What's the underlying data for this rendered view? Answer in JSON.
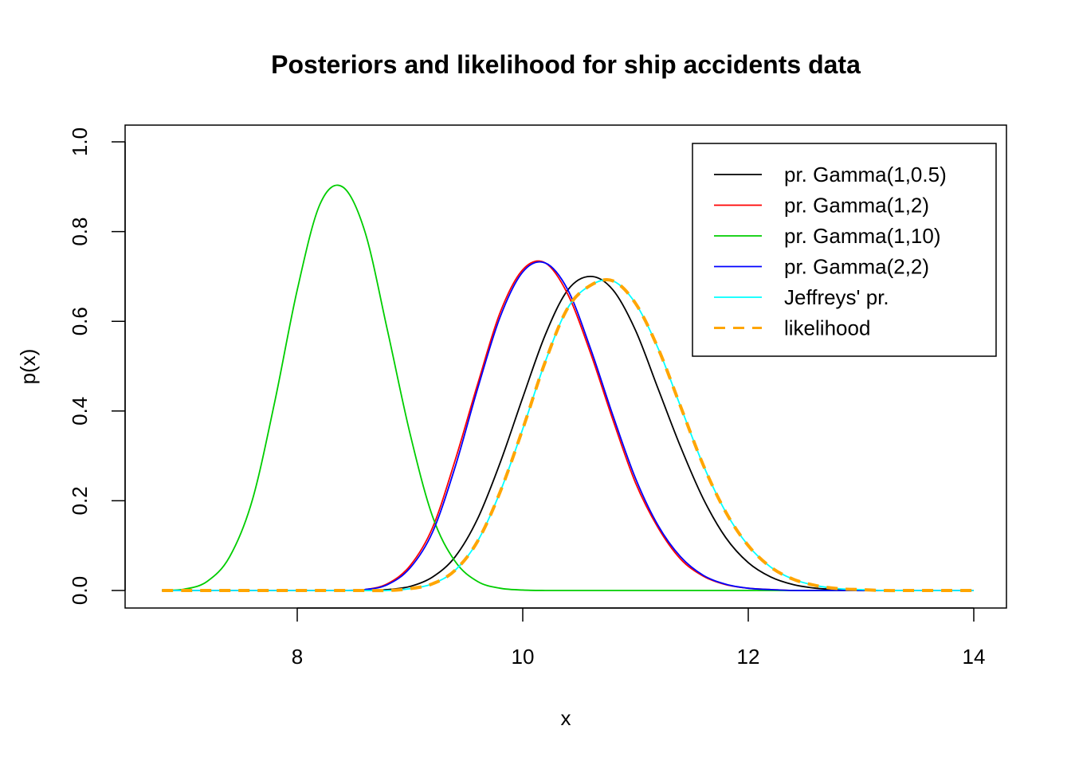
{
  "chart_data": {
    "type": "line",
    "title": "Posteriors and likelihood for ship accidents data",
    "xlabel": "x",
    "ylabel": "p(x)",
    "xlim": [
      6.8,
      14.0
    ],
    "ylim": [
      0.0,
      1.0
    ],
    "x_ticks": [
      8,
      10,
      12,
      14
    ],
    "x_tick_labels": [
      "8",
      "10",
      "12",
      "14"
    ],
    "y_ticks": [
      0.0,
      0.2,
      0.4,
      0.6,
      0.8,
      1.0
    ],
    "y_tick_labels": [
      "0.0",
      "0.2",
      "0.4",
      "0.6",
      "0.8",
      "1.0"
    ],
    "grid": false,
    "legend_position": "top-right",
    "x": [
      6.8,
      7.0,
      7.2,
      7.4,
      7.6,
      7.8,
      8.0,
      8.2,
      8.4,
      8.6,
      8.8,
      9.0,
      9.2,
      9.4,
      9.6,
      9.8,
      10.0,
      10.2,
      10.4,
      10.6,
      10.8,
      11.0,
      11.2,
      11.4,
      11.6,
      11.8,
      12.0,
      12.2,
      12.4,
      12.6,
      12.8,
      13.0,
      13.2,
      13.4,
      13.6,
      13.8,
      14.0
    ],
    "series": [
      {
        "name": "pr. Gamma(1,0.5)",
        "color": "#000000",
        "dash": "solid",
        "values": [
          0.0,
          0.0,
          0.0,
          0.0,
          0.0,
          0.0,
          0.0,
          0.0,
          0.0,
          0.0,
          0.002,
          0.009,
          0.03,
          0.075,
          0.16,
          0.285,
          0.43,
          0.57,
          0.67,
          0.7,
          0.67,
          0.58,
          0.45,
          0.32,
          0.205,
          0.118,
          0.062,
          0.03,
          0.013,
          0.005,
          0.002,
          0.0,
          0.0,
          0.0,
          0.0,
          0.0,
          0.0
        ]
      },
      {
        "name": "pr. Gamma(1,2)",
        "color": "#ff0000",
        "dash": "solid",
        "values": [
          0.0,
          0.0,
          0.0,
          0.0,
          0.0,
          0.0,
          0.0,
          0.0,
          0.0,
          0.002,
          0.015,
          0.055,
          0.14,
          0.29,
          0.46,
          0.62,
          0.715,
          0.73,
          0.66,
          0.53,
          0.38,
          0.24,
          0.14,
          0.07,
          0.032,
          0.013,
          0.005,
          0.002,
          0.0,
          0.0,
          0.0,
          0.0,
          0.0,
          0.0,
          0.0,
          0.0,
          0.0
        ]
      },
      {
        "name": "pr. Gamma(1,10)",
        "color": "#00cd00",
        "dash": "solid",
        "values": [
          0.0,
          0.003,
          0.02,
          0.075,
          0.2,
          0.42,
          0.67,
          0.86,
          0.9,
          0.8,
          0.58,
          0.35,
          0.165,
          0.065,
          0.02,
          0.005,
          0.001,
          0.0,
          0.0,
          0.0,
          0.0,
          0.0,
          0.0,
          0.0,
          0.0,
          0.0,
          0.0,
          0.0,
          0.0,
          0.0,
          0.0,
          0.0,
          0.0,
          0.0,
          0.0,
          0.0,
          0.0
        ]
      },
      {
        "name": "pr. Gamma(2,2)",
        "color": "#0000ff",
        "dash": "solid",
        "values": [
          0.0,
          0.0,
          0.0,
          0.0,
          0.0,
          0.0,
          0.0,
          0.0,
          0.0,
          0.002,
          0.013,
          0.05,
          0.13,
          0.275,
          0.45,
          0.61,
          0.71,
          0.73,
          0.67,
          0.54,
          0.39,
          0.25,
          0.145,
          0.075,
          0.034,
          0.014,
          0.005,
          0.002,
          0.0,
          0.0,
          0.0,
          0.0,
          0.0,
          0.0,
          0.0,
          0.0,
          0.0
        ]
      },
      {
        "name": "Jeffreys' pr.",
        "color": "#00ffff",
        "dash": "solid",
        "values": [
          0.0,
          0.0,
          0.0,
          0.0,
          0.0,
          0.0,
          0.0,
          0.0,
          0.0,
          0.0,
          0.0,
          0.004,
          0.015,
          0.045,
          0.11,
          0.22,
          0.36,
          0.51,
          0.63,
          0.68,
          0.69,
          0.64,
          0.54,
          0.41,
          0.28,
          0.175,
          0.1,
          0.052,
          0.025,
          0.011,
          0.004,
          0.002,
          0.0,
          0.0,
          0.0,
          0.0,
          0.0
        ]
      },
      {
        "name": "likelihood",
        "color": "#ffa500",
        "dash": "dashed",
        "values": [
          0.0,
          0.0,
          0.0,
          0.0,
          0.0,
          0.0,
          0.0,
          0.0,
          0.0,
          0.0,
          0.0,
          0.004,
          0.015,
          0.045,
          0.11,
          0.22,
          0.36,
          0.51,
          0.63,
          0.68,
          0.69,
          0.64,
          0.54,
          0.41,
          0.28,
          0.175,
          0.1,
          0.052,
          0.025,
          0.011,
          0.004,
          0.002,
          0.0,
          0.0,
          0.0,
          0.0,
          0.0
        ]
      }
    ]
  }
}
